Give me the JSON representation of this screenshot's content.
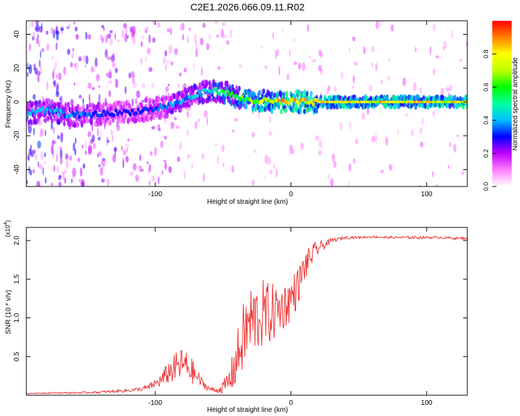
{
  "title": "C2E1.2026.066.09.11.R02",
  "chart_data": [
    {
      "type": "heatmap",
      "panel": "top",
      "title": "C2E1.2026.066.09.11.R02",
      "xlabel": "Height of straight line (km)",
      "ylabel": "Frequency (Hz)",
      "xlim": [
        -195,
        130
      ],
      "ylim": [
        -50,
        48
      ],
      "xticks": [
        -100,
        0,
        100
      ],
      "yticks": [
        -40,
        -20,
        0,
        20,
        40
      ],
      "xtick_labels": [
        "-100",
        "0",
        "100"
      ],
      "ytick_labels": [
        "-40",
        "-20",
        "0",
        "20",
        "40"
      ],
      "colorbar": {
        "label": "Normalized spectral amplitude",
        "range": [
          0,
          1
        ],
        "ticks": [
          0.0,
          0.2,
          0.4,
          0.6,
          0.8
        ],
        "tick_labels": [
          "0.0",
          "0.2",
          "0.4",
          "0.6",
          "0.8"
        ],
        "colors": [
          "#ffffff",
          "#ff80ff",
          "#c000ff",
          "#0000ff",
          "#00c0ff",
          "#00ffa0",
          "#00ff00",
          "#c0ff00",
          "#ffff00",
          "#ff8000",
          "#ff0000"
        ]
      },
      "ridge": {
        "x": [
          -195,
          -180,
          -160,
          -140,
          -120,
          -100,
          -85,
          -70,
          -60,
          -50,
          -40,
          -30,
          -20,
          -10,
          0,
          10,
          20,
          130
        ],
        "y": [
          -7,
          -5,
          -8,
          -7,
          -6,
          -4,
          -1,
          4,
          7,
          6,
          3,
          1,
          0.5,
          0,
          0,
          0,
          0,
          0
        ],
        "amplitude": [
          0.4,
          0.45,
          0.4,
          0.35,
          0.3,
          0.35,
          0.4,
          0.45,
          0.5,
          0.55,
          0.6,
          0.7,
          0.8,
          0.85,
          0.9,
          0.9,
          0.85,
          0.85
        ]
      }
    },
    {
      "type": "line",
      "panel": "bottom",
      "xlabel": "Height of straight line (km)",
      "ylabel": "SNR (10 * v/v)",
      "yscale_label": "(x10",
      "yscale_exp": "4",
      "xlim": [
        -195,
        130
      ],
      "ylim": [
        0,
        2.17
      ],
      "xticks": [
        -100,
        0,
        100
      ],
      "yticks": [
        0.5,
        1.0,
        1.5,
        2.0
      ],
      "xtick_labels": [
        "-100",
        "0",
        "100"
      ],
      "ytick_labels": [
        "0.5",
        "1.0",
        "1.5",
        "2.0"
      ],
      "series": [
        {
          "name": "SNR",
          "color": "#ee3333",
          "x": [
            -195,
            -180,
            -160,
            -140,
            -130,
            -120,
            -110,
            -105,
            -100,
            -95,
            -90,
            -85,
            -80,
            -75,
            -70,
            -65,
            -60,
            -55,
            -50,
            -45,
            -40,
            -35,
            -30,
            -25,
            -20,
            -15,
            -10,
            -5,
            0,
            5,
            10,
            15,
            20,
            25,
            30,
            35,
            40,
            50,
            60,
            70,
            80,
            90,
            100,
            110,
            120,
            130
          ],
          "y": [
            0.02,
            0.03,
            0.03,
            0.04,
            0.05,
            0.06,
            0.08,
            0.1,
            0.15,
            0.2,
            0.3,
            0.35,
            0.4,
            0.35,
            0.25,
            0.15,
            0.08,
            0.06,
            0.1,
            0.2,
            0.45,
            0.75,
            0.95,
            1.0,
            1.05,
            1.05,
            1.1,
            1.15,
            1.25,
            1.4,
            1.65,
            1.8,
            1.9,
            1.95,
            2.0,
            2.02,
            2.04,
            2.04,
            2.05,
            2.04,
            2.04,
            2.04,
            2.04,
            2.04,
            2.03,
            2.03
          ],
          "noise": [
            0.005,
            0.008,
            0.01,
            0.015,
            0.02,
            0.02,
            0.03,
            0.04,
            0.06,
            0.1,
            0.15,
            0.2,
            0.22,
            0.2,
            0.12,
            0.06,
            0.03,
            0.03,
            0.08,
            0.18,
            0.35,
            0.45,
            0.5,
            0.45,
            0.45,
            0.4,
            0.35,
            0.3,
            0.3,
            0.25,
            0.2,
            0.15,
            0.1,
            0.05,
            0.03,
            0.02,
            0.02,
            0.015,
            0.015,
            0.015,
            0.015,
            0.02,
            0.015,
            0.015,
            0.015,
            0.015
          ]
        }
      ]
    }
  ]
}
